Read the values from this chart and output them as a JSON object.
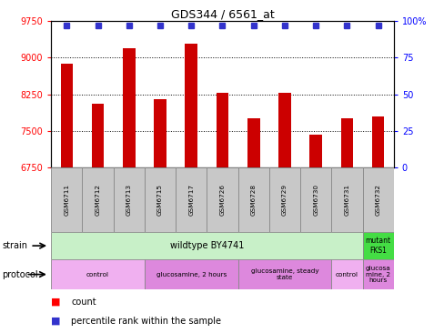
{
  "title": "GDS344 / 6561_at",
  "samples": [
    "GSM6711",
    "GSM6712",
    "GSM6713",
    "GSM6715",
    "GSM6717",
    "GSM6726",
    "GSM6728",
    "GSM6729",
    "GSM6730",
    "GSM6731",
    "GSM6732"
  ],
  "bar_values": [
    8870,
    8050,
    9200,
    8150,
    9280,
    8280,
    7760,
    8280,
    7420,
    7760,
    7800
  ],
  "bar_color": "#cc0000",
  "percentile_color": "#3333cc",
  "ylim_left": [
    6750,
    9750
  ],
  "ylim_right": [
    0,
    100
  ],
  "yticks_left": [
    6750,
    7500,
    8250,
    9000,
    9750
  ],
  "yticks_right": [
    0,
    25,
    50,
    75,
    100
  ],
  "ytick_labels_right": [
    "0",
    "25",
    "50",
    "75",
    "100%"
  ],
  "grid_values": [
    7500,
    8250,
    9000
  ],
  "strain_wildtype_color": "#c8f0c8",
  "strain_mutant_color": "#44dd44",
  "protocol_light_color": "#f0b0f0",
  "protocol_dark_color": "#dd88dd",
  "xtick_bg": "#c8c8c8",
  "protocol_segments": [
    {
      "label": "control",
      "start": 0,
      "end": 3,
      "light": true
    },
    {
      "label": "glucosamine, 2 hours",
      "start": 3,
      "end": 6,
      "light": false
    },
    {
      "label": "glucosamine, steady\nstate",
      "start": 6,
      "end": 9,
      "light": false
    },
    {
      "label": "control",
      "start": 9,
      "end": 10,
      "light": true
    },
    {
      "label": "glucosa\nmine, 2\nhours",
      "start": 10,
      "end": 11,
      "light": false
    }
  ]
}
